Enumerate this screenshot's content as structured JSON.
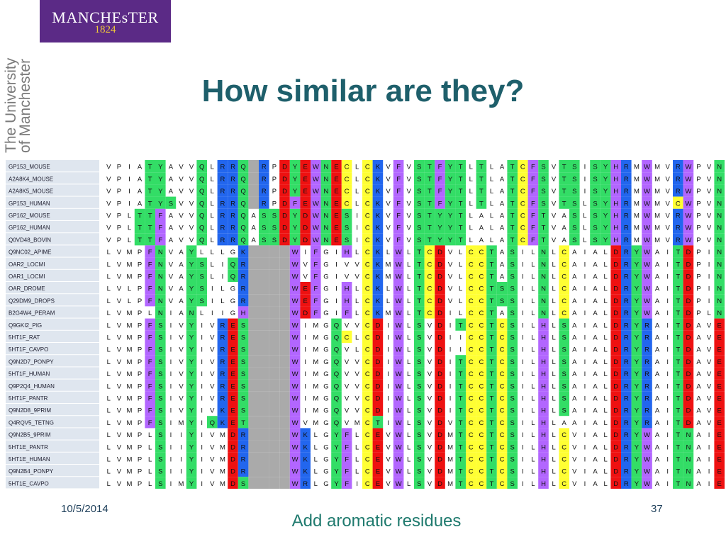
{
  "logo": {
    "name": "MANCHEsTER",
    "year": "1824"
  },
  "side_text": {
    "line1": "The University",
    "line2": "of Manchester"
  },
  "title": "How similar are they?",
  "footer": {
    "date": "10/5/2014",
    "page": "37"
  },
  "caption": "Add aromatic residues",
  "colors": {
    "F": "#b266ff",
    "W": "#b266ff",
    "Y": "#33dd66",
    "H": "#b266ff",
    "C": "#ffff33",
    "D": "#ee1111",
    "E": "#ee1111",
    "K": "#2266ee",
    "R": "#2266ee",
    "T": "#33dd66",
    "S": "#33dd66",
    "N": "#33dd66",
    "Q": "#33dd66",
    "-": "#aaaaaa"
  },
  "alignment": {
    "names": [
      "GP153_MOUSE",
      "A2A8K4_MOUSE",
      "A2A8K5_MOUSE",
      "GP153_HUMAN",
      "GP162_MOUSE",
      "GP162_HUMAN",
      "Q0VD48_BOVIN",
      "Q9NC02_APIME",
      "OAR2_LOCMI",
      "OAR1_LOCMI",
      "OAR_DROME",
      "Q29DM9_DROPS",
      "B2G4W4_PERAM",
      "Q9GKI2_PIG",
      "5HT1F_RAT",
      "5HT1F_CAVPO",
      "Q9N2D7_PONPY",
      "5HT1F_HUMAN",
      "Q9P2Q4_HUMAN",
      "5HT1F_PANTR",
      "Q9N2D8_9PRIM",
      "Q4RQV5_TETNG",
      "Q9N2B5_9PRIM",
      "5HT1E_PANTR",
      "5HT1E_HUMAN",
      "Q9N2B4_PONPY",
      "5HT1E_CAVPO"
    ],
    "sequences": [
      "VPIATYAVVQLRRQ-RPDYEWNECLCKVFVSTFYTLTLATCFSVTSISYHRMWMVRWPVN",
      "VPIATYAVVQLRRQ-RPDYEWNECLCKVFVSTFYTLTLATCFSVTSISYHRMWMVRWPVN",
      "VPIATYAVVQLRRQ-RPDYEWNECLCKVFVSTFYTLTLATCFSVTSISYHRMWMVRWPVN",
      "VPIATYSVVQLRRQ-RPDFEWNECLCKVFVSTFYTLTLATCFSVTSLSYHRMWMVCWPVN",
      "VPLTTFAVVQLRRQASSDYDWNESICKVFVSTYYTLALATCFTVASLSYHRMWMVRWPVN",
      "VPLTTFAVVQLRRQASSDYDWNESICKVFVSTYYTLALATCFTVASLSYHRMWMVRWPVN",
      "VPLTTFAVVQLRRQASSDYDWNESICKVFVSTYYTLALATCFTVASLSYHRMWMVRWPVN",
      "LVMPFNVAYLLLGK----WIFGIHLCKLWLTCDVLCCTASILNLCAIALDRYWAITDPIN",
      "LVMPFNVAYSLIQR----WVFGIVVCKMWLTCDVLCCTASILNLCAIALDRYWAITDPIN",
      "LVMPFNVAYSLIQR----WVFGIVVCKMWLTCDVLCCTASILNLCAIALDRYWAITDPIN",
      "LVLPFNVAYSILGR----WEFGIHLCKLWLTCDVLCCTSSILNLCAIALDRYWAITDPIN",
      "LVLPFNVAYSILGR----WEFGIHLCKLWLTCDVLCCTSSILNLCAIALDRYWAITDPIN",
      "LVMPLNIANLIIGH----WDFGIFLCKMWLTCDILCCTASILNLCAIALDRYWAITDPLN",
      "LVMPFSIVYIVRES----WIMGQVVCDIWLSVDITCCTCSILHLSAIALDRYRAITDAVE",
      "LVMPFSIVYIVRES----WIMGQCLCDIWLSVDIICCTCSILHLSAIALDRYRAITDAVE",
      "LVMPFSIVYIVRES----WIMGQVLCDIWLSVDIICCTCSILHLSAIALDRYRAITDAVE",
      "LVMPFSIVYIVRES----WIMGQVVCDIWLSVDITCCTCSILHLSAIALDRYRAITDAVE",
      "LVMPFSIVYIVRES----WIMGQVVCDIWLSVDITCCTCSILHLSAIALDRYRAITDAVE",
      "LVMPFSIVYIVRES----WIMGQVVCDIWLSVDITCCTCSILHLSAIALDRYRAITDAVE",
      "LVMPFSIVYIVRES----WIMGQVVCDIWLSVDITCCTCSILHLSAIALDRYRAITDAVE",
      "LVMPFSIVYIVKES----WIMGQVVCDIWLSVDITCCTCSILHLSAIALDRYRAITDAVE",
      "LVMPFSIMYIQKET----WVMGQVMCTIWLSVDVTCCTCSILHLAAIALDRYRAITDAVE",
      "LVMPLSIIYIVMDR----WKLGYFLCEVWLSVDMTCCTCSILHLCVIALDRYWAITNAIE",
      "LVMPLSIIYIVMDR----WKLGYFLCEVWLSVDMTCCTCSILHLCVIALDRYWAITNAIE",
      "LVMPLSIIYIVMDR----WKLGYFLCEVWLSVDMTCCTCSILHLCVIALDRYWAITNAIE",
      "LVMPLSIIYIVMDR----WKLGYFLCEVWLSVDMTCCTCSILHLCVIALDRYWAITNAIE",
      "LVMPLSIMYIVMDS----WRLGYFICEVWLSVDMTCCTCSILHLCVIALDRYWAITNAIE"
    ]
  }
}
